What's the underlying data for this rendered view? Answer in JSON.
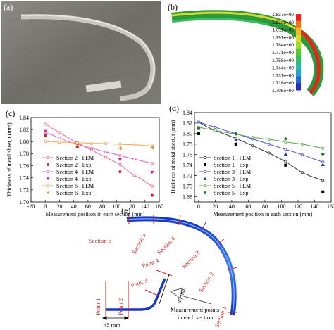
{
  "panels": {
    "a": {
      "label": "(a)"
    },
    "b": {
      "label": "(b)",
      "colorbar": [
        "1.837e+00",
        "1.824e+00",
        "1.811e+00",
        "1.797e+00",
        "1.784e+00",
        "1.771e+00",
        "1.758e+00",
        "1.744e+00",
        "1.731e+00",
        "1.718e+00",
        "1.705e+00"
      ],
      "colors": [
        "#e8231b",
        "#f2731e",
        "#f5b42b",
        "#d9d92a",
        "#9fd82c",
        "#58c83a",
        "#3bbf62",
        "#2eb7a0",
        "#2aa3c8",
        "#2866d0",
        "#2b2fb8"
      ]
    },
    "c": {
      "label": "(c)"
    },
    "d": {
      "label": "(d)"
    },
    "e": {
      "label": "(e)",
      "sections": [
        "Section 1",
        "Section 2",
        "Section 3",
        "Section 4",
        "Section 5",
        "Section 6"
      ],
      "points": [
        "Point 1",
        "Point 2",
        "Point 3",
        "Point 4"
      ],
      "dim_45_horizontal": "45 mm",
      "dim_45_vertical": "45 mm",
      "callout": [
        "Measurement points",
        "in each section"
      ]
    }
  },
  "chart_data": [
    {
      "id": "c",
      "type": "line",
      "xlabel": "Measurement position in each section (mm)",
      "ylabel": "Thickness of metal sheet, t (mm)",
      "xlim": [
        -20,
        160
      ],
      "ylim": [
        1.7,
        1.84
      ],
      "xticks": [
        "-20",
        "0",
        "20",
        "40",
        "60",
        "80",
        "100",
        "120",
        "140",
        "160"
      ],
      "yticks": [
        "1.70",
        "1.72",
        "1.74",
        "1.76",
        "1.78",
        "1.80",
        "1.82",
        "1.84"
      ],
      "legend_placement": "bottom-left",
      "series": [
        {
          "name": "Section 2 - FEM",
          "kind": "line",
          "color": "#f06c8c",
          "x": [
            0,
            10,
            20,
            30,
            45,
            55,
            65,
            75,
            85,
            95,
            105,
            115,
            125,
            135,
            150
          ],
          "y": [
            1.829,
            1.822,
            1.815,
            1.808,
            1.798,
            1.792,
            1.786,
            1.78,
            1.774,
            1.768,
            1.762,
            1.752,
            1.744,
            1.738,
            1.726
          ]
        },
        {
          "name": "Section 2 - Exp.",
          "kind": "marker",
          "marker": "circle",
          "color": "#d81f2a",
          "x": [
            0,
            45,
            105,
            150
          ],
          "y": [
            1.81,
            1.791,
            1.75,
            1.711
          ]
        },
        {
          "name": "Section 4 - FEM",
          "kind": "line",
          "color": "#e060c0",
          "x": [
            0,
            10,
            20,
            30,
            45,
            55,
            65,
            75,
            85,
            95,
            105,
            115,
            125,
            135,
            150
          ],
          "y": [
            1.815,
            1.811,
            1.806,
            1.801,
            1.796,
            1.792,
            1.789,
            1.786,
            1.783,
            1.78,
            1.777,
            1.774,
            1.771,
            1.768,
            1.764
          ]
        },
        {
          "name": "Section 4 - Exp.",
          "kind": "marker",
          "marker": "triangle-down",
          "color": "#cc2aa0",
          "x": [
            0,
            45,
            105,
            150
          ],
          "y": [
            1.817,
            1.799,
            1.77,
            1.749
          ]
        },
        {
          "name": "Section 6 - FEM",
          "kind": "line",
          "color": "#f2a64a",
          "x": [
            0,
            10,
            20,
            30,
            45,
            55,
            65,
            75,
            85,
            95,
            105,
            115,
            125,
            135,
            150
          ],
          "y": [
            1.8,
            1.8,
            1.799,
            1.799,
            1.798,
            1.798,
            1.797,
            1.797,
            1.797,
            1.796,
            1.796,
            1.795,
            1.795,
            1.794,
            1.793
          ]
        },
        {
          "name": "Section 6 - Exp.",
          "kind": "marker",
          "marker": "triangle-left",
          "color": "#e8842a",
          "x": [
            45,
            105,
            150
          ],
          "y": [
            1.795,
            1.789,
            1.79
          ]
        }
      ]
    },
    {
      "id": "d",
      "type": "line",
      "xlabel": "Measurement position in each section (mm)",
      "ylabel": "Thickness of metal sheet, t (mm)",
      "xlim": [
        -5,
        160
      ],
      "ylim": [
        1.67,
        1.84
      ],
      "xticks": [
        "0",
        "20",
        "40",
        "60",
        "80",
        "100",
        "120",
        "140",
        "160"
      ],
      "yticks": [
        "1.68",
        "1.70",
        "1.72",
        "1.74",
        "1.76",
        "1.78",
        "1.80",
        "1.82",
        "1.84"
      ],
      "legend_placement": "bottom-left",
      "series": [
        {
          "name": "Section 1 - FEM",
          "kind": "line",
          "color": "#333333",
          "x": [
            0,
            10,
            20,
            30,
            45,
            55,
            65,
            75,
            85,
            95,
            105,
            115,
            125,
            135,
            150
          ],
          "y": [
            1.822,
            1.813,
            1.806,
            1.8,
            1.791,
            1.784,
            1.777,
            1.77,
            1.763,
            1.755,
            1.747,
            1.736,
            1.726,
            1.719,
            1.711
          ]
        },
        {
          "name": "Section 1 - Exp.",
          "kind": "marker",
          "marker": "square",
          "color": "#000000",
          "x": [
            0,
            45,
            105,
            150
          ],
          "y": [
            1.8,
            1.78,
            1.74,
            1.689
          ]
        },
        {
          "name": "Section 3 - FEM",
          "kind": "line",
          "color": "#4a50e0",
          "x": [
            0,
            10,
            20,
            30,
            45,
            55,
            65,
            75,
            85,
            95,
            105,
            115,
            125,
            135,
            150
          ],
          "y": [
            1.822,
            1.817,
            1.812,
            1.807,
            1.8,
            1.795,
            1.79,
            1.785,
            1.78,
            1.775,
            1.77,
            1.765,
            1.76,
            1.754,
            1.746
          ]
        },
        {
          "name": "Section 3 - Exp.",
          "kind": "marker",
          "marker": "triangle-up",
          "color": "#1a2ad0",
          "x": [
            0,
            45,
            105,
            150
          ],
          "y": [
            1.81,
            1.788,
            1.761,
            1.741
          ]
        },
        {
          "name": "Section 5 - FEM",
          "kind": "line",
          "color": "#5aa84a",
          "x": [
            0,
            10,
            20,
            30,
            45,
            55,
            65,
            75,
            85,
            95,
            105,
            115,
            125,
            135,
            150
          ],
          "y": [
            1.812,
            1.809,
            1.806,
            1.803,
            1.799,
            1.796,
            1.793,
            1.791,
            1.789,
            1.787,
            1.784,
            1.782,
            1.78,
            1.777,
            1.772
          ]
        },
        {
          "name": "Section 5 - Exp.",
          "kind": "marker",
          "marker": "diamond",
          "color": "#1e7a2a",
          "x": [
            0,
            45,
            105,
            150
          ],
          "y": [
            1.81,
            1.8,
            1.79,
            1.761
          ]
        }
      ]
    }
  ]
}
